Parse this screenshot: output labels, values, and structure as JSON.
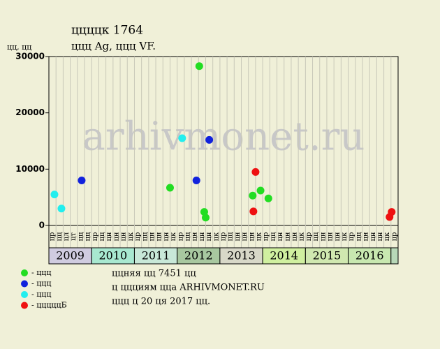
{
  "chart_data": {
    "type": "scatter",
    "title": "ццццк 1764",
    "subtitle": "ццц Ag, ццц VF.",
    "y_label": "цц, цц",
    "watermark": "arhivmonet.ru",
    "categories": [
      "цр",
      "цц",
      "цл",
      "цт",
      "цц",
      "цц",
      "цр",
      "цц",
      "цн",
      "цн",
      "цн",
      "цк",
      "цр",
      "цц",
      "цн",
      "цн",
      "цн",
      "цк",
      "цр",
      "цц",
      "цн",
      "цн",
      "цн",
      "цк",
      "цр",
      "цц",
      "цн",
      "цн",
      "цн",
      "цк",
      "цр",
      "цц",
      "цн",
      "цн",
      "цн",
      "цк",
      "цр",
      "цц",
      "цн",
      "цн",
      "цн",
      "цк",
      "цр",
      "цц",
      "цн",
      "цн",
      "цн",
      "цк",
      "цр"
    ],
    "years": [
      {
        "label": "2009",
        "color": "#d0cce0"
      },
      {
        "label": "2010",
        "color": "#a8e8d0"
      },
      {
        "label": "2011",
        "color": "#c8e8d8"
      },
      {
        "label": "2012",
        "color": "#a8c8a0"
      },
      {
        "label": "2013",
        "color": "#d8d8c8"
      },
      {
        "label": "2014",
        "color": "#d0f0a0"
      },
      {
        "label": "2015",
        "color": "#d0e8b0"
      },
      {
        "label": "2016",
        "color": "#c8e8b0"
      }
    ],
    "xlim": [
      0,
      49
    ],
    "ylim": [
      0,
      30000
    ],
    "yticks": [
      0,
      10000,
      20000,
      30000
    ],
    "series": [
      {
        "name": "- ццц",
        "color": "#22dd22",
        "x": [
          17.0,
          21.1,
          21.8,
          22.0,
          28.6,
          29.7,
          30.8
        ],
        "values": [
          6700,
          28300,
          2400,
          1400,
          5300,
          6200,
          4800
        ]
      },
      {
        "name": "- ццц",
        "color": "#1122dd",
        "x": [
          4.6,
          20.7,
          22.5
        ],
        "values": [
          8000,
          8000,
          15200
        ]
      },
      {
        "name": "- ццц",
        "color": "#22eeee",
        "x": [
          0.78,
          1.76,
          18.7
        ],
        "values": [
          5500,
          3000,
          15500
        ]
      },
      {
        "name": "- цццццБ",
        "color": "#ee1111",
        "x": [
          28.7,
          29.0,
          47.8,
          48.1
        ],
        "values": [
          2500,
          9500,
          1500,
          2400
        ]
      }
    ],
    "notes": [
      "ццняя цц 7451 цц",
      "ц ццциям цца ARHIVMONET.RU",
      "ццц ц 20 ця 2017 цц."
    ]
  }
}
